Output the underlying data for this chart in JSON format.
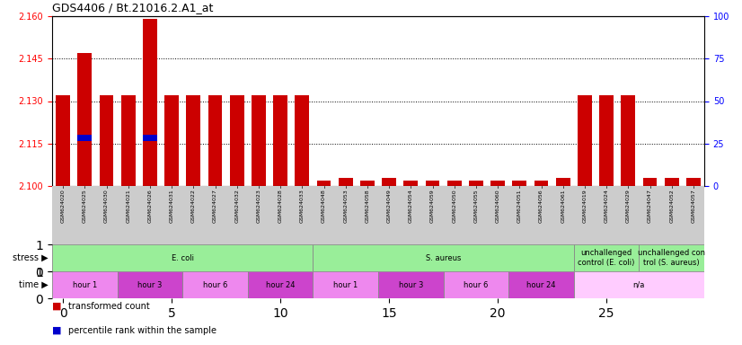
{
  "title": "GDS4406 / Bt.21016.2.A1_at",
  "samples": [
    "GSM624020",
    "GSM624025",
    "GSM624030",
    "GSM624021",
    "GSM624026",
    "GSM624031",
    "GSM624022",
    "GSM624027",
    "GSM624032",
    "GSM624023",
    "GSM624028",
    "GSM624033",
    "GSM624048",
    "GSM624053",
    "GSM624058",
    "GSM624049",
    "GSM624054",
    "GSM624059",
    "GSM624050",
    "GSM624055",
    "GSM624060",
    "GSM624051",
    "GSM624056",
    "GSM624061",
    "GSM624019",
    "GSM624024",
    "GSM624029",
    "GSM624047",
    "GSM624052",
    "GSM624057"
  ],
  "bar_values": [
    2.132,
    2.147,
    2.132,
    2.132,
    2.159,
    2.132,
    2.132,
    2.132,
    2.132,
    2.132,
    2.132,
    2.132,
    2.102,
    2.103,
    2.102,
    2.103,
    2.102,
    2.102,
    2.102,
    2.102,
    2.102,
    2.102,
    2.102,
    2.103,
    2.132,
    2.132,
    2.132,
    2.103,
    2.103,
    2.103
  ],
  "percentile_values": [
    null,
    2.117,
    null,
    null,
    2.117,
    null,
    null,
    null,
    null,
    null,
    null,
    null,
    null,
    null,
    null,
    null,
    null,
    null,
    null,
    null,
    null,
    null,
    null,
    null,
    null,
    null,
    null,
    null,
    null,
    null
  ],
  "ylim_left": [
    2.1,
    2.16
  ],
  "ylim_right": [
    0,
    100
  ],
  "yticks_left": [
    2.1,
    2.115,
    2.13,
    2.145,
    2.16
  ],
  "yticks_right": [
    0,
    25,
    50,
    75,
    100
  ],
  "bar_color": "#cc0000",
  "percentile_color": "#0000cc",
  "stress_groups": [
    {
      "label": "E. coli",
      "start": 0,
      "end": 12,
      "color": "#99ee99"
    },
    {
      "label": "S. aureus",
      "start": 12,
      "end": 24,
      "color": "#99ee99"
    },
    {
      "label": "unchallenged\ncontrol (E. coli)",
      "start": 24,
      "end": 27,
      "color": "#99ee99"
    },
    {
      "label": "unchallenged con\ntrol (S. aureus)",
      "start": 27,
      "end": 30,
      "color": "#99ee99"
    }
  ],
  "time_groups": [
    {
      "label": "hour 1",
      "start": 0,
      "end": 3,
      "color": "#ee88ee"
    },
    {
      "label": "hour 3",
      "start": 3,
      "end": 6,
      "color": "#cc44cc"
    },
    {
      "label": "hour 6",
      "start": 6,
      "end": 9,
      "color": "#ee88ee"
    },
    {
      "label": "hour 24",
      "start": 9,
      "end": 12,
      "color": "#cc44cc"
    },
    {
      "label": "hour 1",
      "start": 12,
      "end": 15,
      "color": "#ee88ee"
    },
    {
      "label": "hour 3",
      "start": 15,
      "end": 18,
      "color": "#cc44cc"
    },
    {
      "label": "hour 6",
      "start": 18,
      "end": 21,
      "color": "#ee88ee"
    },
    {
      "label": "hour 24",
      "start": 21,
      "end": 24,
      "color": "#cc44cc"
    },
    {
      "label": "n/a",
      "start": 24,
      "end": 30,
      "color": "#ffccff"
    }
  ],
  "legend_items": [
    {
      "label": "transformed count",
      "color": "#cc0000"
    },
    {
      "label": "percentile rank within the sample",
      "color": "#0000cc"
    }
  ],
  "tick_bg_color": "#cccccc",
  "stress_border_color": "#888888",
  "time_border_color": "#888888"
}
